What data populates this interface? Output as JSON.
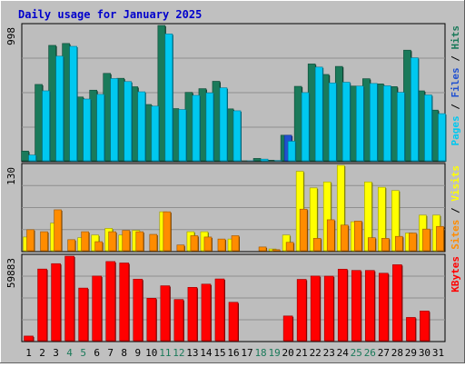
{
  "chart_data": {
    "type": "bar",
    "title": "Daily usage for January 2025",
    "days": [
      "1",
      "2",
      "3",
      "4",
      "5",
      "6",
      "7",
      "8",
      "9",
      "10",
      "11",
      "12",
      "13",
      "14",
      "15",
      "16",
      "17",
      "18",
      "19",
      "20",
      "21",
      "22",
      "23",
      "24",
      "25",
      "26",
      "27",
      "28",
      "29",
      "30",
      "31"
    ],
    "weekend_days": [
      "4",
      "5",
      "11",
      "12",
      "18",
      "19",
      "25",
      "26"
    ],
    "panels": [
      {
        "id": "pages-files-hits",
        "max_label": "998",
        "ylim": [
          0,
          998
        ],
        "right_labels": [
          "Pages",
          "Files",
          "Hits"
        ],
        "series": [
          {
            "name": "Hits",
            "color": "#1a7a5a",
            "values": [
              78,
              566,
              852,
              866,
              474,
              524,
              647,
              611,
              549,
              419,
              998,
              389,
              508,
              535,
              589,
              387,
              7,
              24,
              11,
              194,
              552,
              716,
              639,
              698,
              554,
              608,
              570,
              550,
              817,
              519,
              378
            ]
          },
          {
            "name": "Files",
            "color": "#2050d0",
            "values": [
              0,
              0,
              0,
              0,
              0,
              0,
              0,
              0,
              0,
              0,
              0,
              0,
              0,
              0,
              0,
              0,
              0,
              0,
              0,
              194,
              0,
              0,
              0,
              0,
              0,
              0,
              0,
              0,
              0,
              0,
              0
            ]
          },
          {
            "name": "Pages",
            "color": "#00c8f0",
            "values": [
              49,
              519,
              773,
              845,
              459,
              493,
              609,
              587,
              512,
              407,
              936,
              382,
              486,
              504,
              541,
              373,
              7,
              19,
              9,
              150,
              506,
              693,
              577,
              582,
              554,
              573,
              556,
              508,
              761,
              489,
              352
            ]
          }
        ]
      },
      {
        "id": "visits-sites",
        "max_label": "130",
        "ylim": [
          0,
          130
        ],
        "right_labels": [
          "Sites",
          "Visits"
        ],
        "series": [
          {
            "name": "Visits",
            "color": "#ffff00",
            "values": [
              22,
              0,
              43,
              0,
              21,
              25,
              35,
              25,
              32,
              0,
              60,
              0,
              30,
              30,
              0,
              19,
              0,
              0,
              4,
              25,
              121,
              96,
              105,
              130,
              45,
              105,
              97,
              92,
              28,
              55,
              55
            ]
          },
          {
            "name": "Sites",
            "color": "#ff8c00",
            "values": [
              33,
              30,
              63,
              18,
              30,
              15,
              30,
              32,
              30,
              26,
              60,
              10,
              24,
              22,
              19,
              24,
              1,
              7,
              3,
              14,
              64,
              20,
              48,
              40,
              46,
              21,
              20,
              23,
              28,
              34,
              38
            ]
          }
        ]
      },
      {
        "id": "kbytes",
        "max_label": "59883",
        "ylim": [
          0,
          59883
        ],
        "right_labels": [
          "KBytes"
        ],
        "series": [
          {
            "name": "KBytes",
            "color": "#ff0000",
            "values": [
              3886,
              50870,
              54640,
              59883,
              37520,
              45950,
              56130,
              55120,
              43780,
              30380,
              39140,
              29510,
              38020,
              40290,
              43930,
              27560,
              0,
              0,
              0,
              17960,
              43630,
              45950,
              45880,
              50780,
              49890,
              49890,
              47940,
              53900,
              16930,
              21450,
              0
            ]
          }
        ]
      }
    ]
  }
}
